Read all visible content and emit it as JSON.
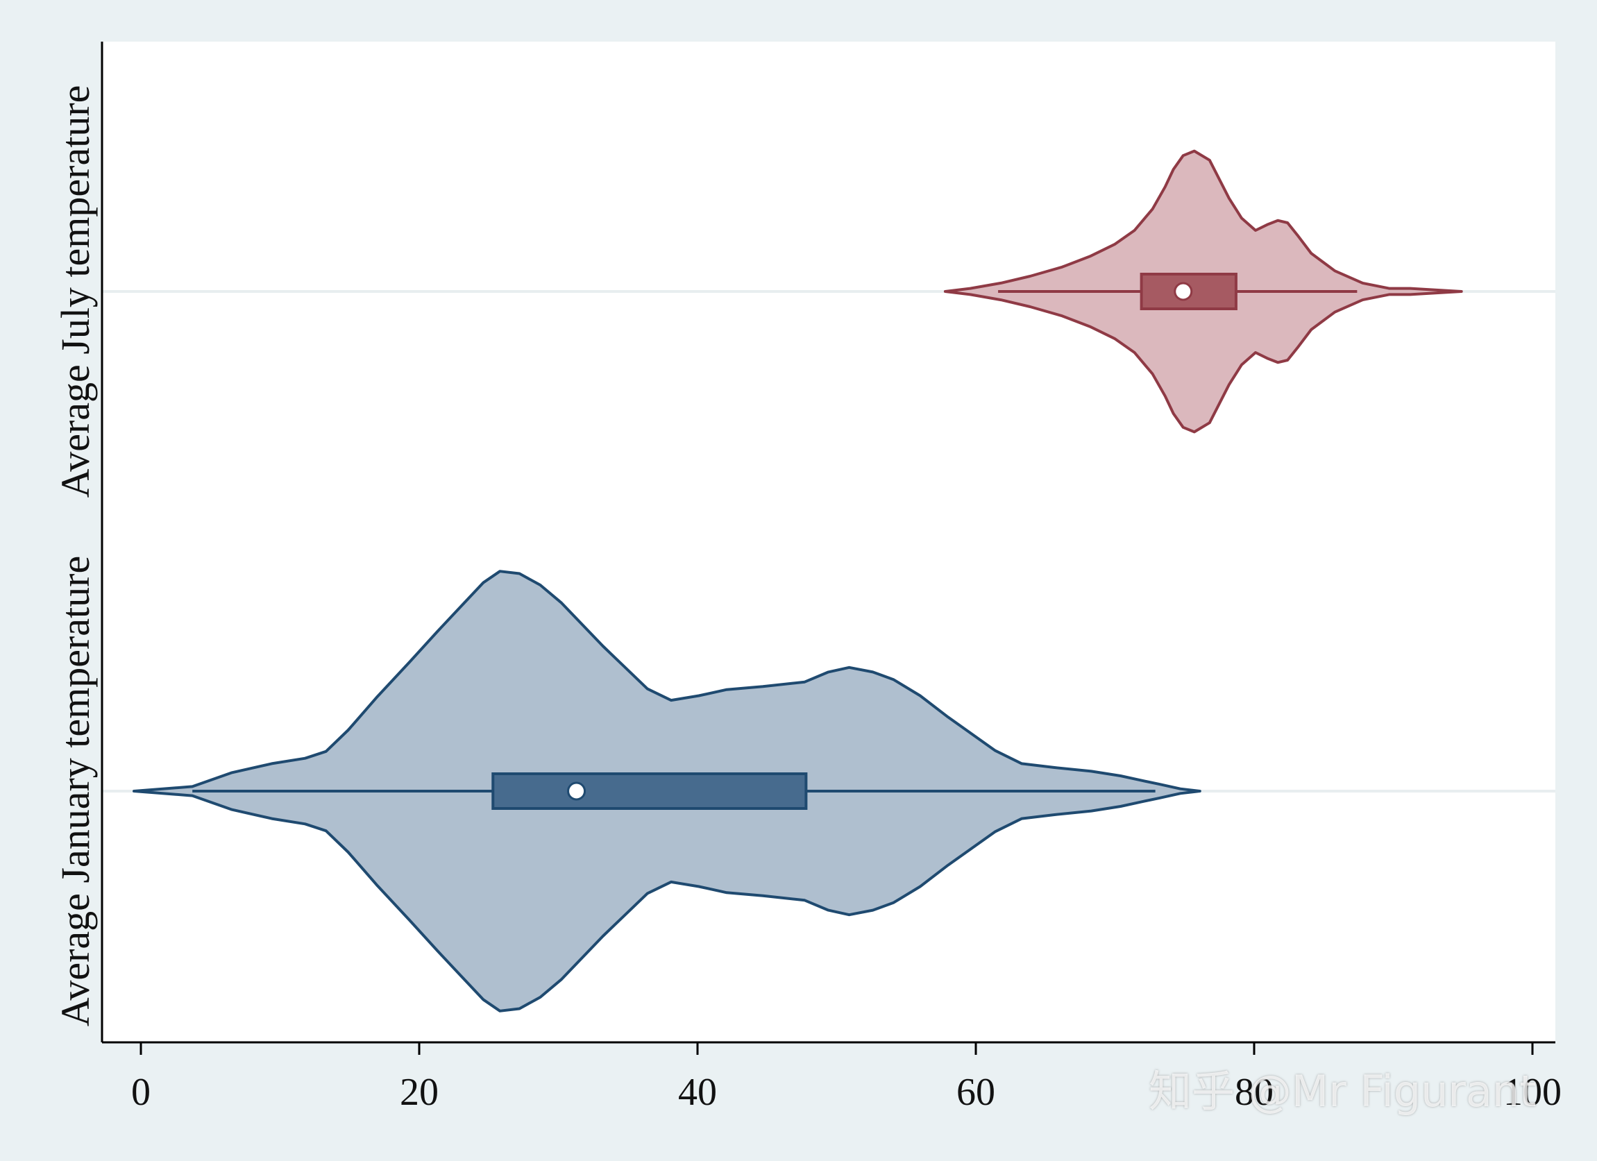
{
  "chart_data": {
    "type": "violin",
    "orientation": "horizontal",
    "xlim": [
      -2,
      101
    ],
    "x_ticks": [
      0,
      20,
      40,
      60,
      80,
      100
    ],
    "x_tick_labels": [
      "0",
      "20",
      "40",
      "60",
      "80",
      "100"
    ],
    "grid": "horizontal reference line at each category",
    "series": [
      {
        "name": "Average July temperature",
        "color_fill": "#dbb8bd",
        "color_line": "#8f3a45",
        "color_box": "#a65a62",
        "whiskers": [
          61.6,
          87.4
        ],
        "box": [
          71.9,
          78.7
        ],
        "median": 74.9,
        "density_x": [
          57.8,
          59.6,
          61.8,
          63.9,
          66.2,
          68.2,
          70.0,
          71.4,
          72.7,
          73.6,
          74.2,
          74.9,
          75.7,
          76.8,
          78.2,
          79.1,
          80.1,
          81.0,
          81.7,
          82.4,
          83.1,
          84.1,
          85.8,
          87.8,
          89.7,
          91.2,
          94.9
        ],
        "density_w": [
          0.0,
          0.04,
          0.11,
          0.2,
          0.32,
          0.46,
          0.62,
          0.8,
          1.08,
          1.37,
          1.6,
          1.78,
          1.84,
          1.72,
          1.22,
          0.96,
          0.8,
          0.88,
          0.93,
          0.9,
          0.74,
          0.5,
          0.27,
          0.11,
          0.04,
          0.04,
          0.0
        ]
      },
      {
        "name": "Average January temperature",
        "color_fill": "#afbfcf",
        "color_line": "#1f4a70",
        "color_box": "#476b8e",
        "whiskers": [
          3.7,
          72.9
        ],
        "box": [
          25.3,
          47.8
        ],
        "median": 31.3,
        "density_x": [
          -0.5,
          3.7,
          6.5,
          9.4,
          11.8,
          13.3,
          14.9,
          17.0,
          19.3,
          21.3,
          23.1,
          24.6,
          25.8,
          27.2,
          28.7,
          30.2,
          33.2,
          36.4,
          38.1,
          40.1,
          42.1,
          44.7,
          47.7,
          49.4,
          50.9,
          52.6,
          54.1,
          56.0,
          58.0,
          59.7,
          61.4,
          63.3,
          65.6,
          68.3,
          70.4,
          71.9,
          73.2,
          74.7,
          76.1
        ],
        "density_w": [
          0.0,
          0.06,
          0.24,
          0.36,
          0.43,
          0.52,
          0.8,
          1.24,
          1.69,
          2.09,
          2.44,
          2.73,
          2.88,
          2.85,
          2.7,
          2.47,
          1.9,
          1.34,
          1.19,
          1.25,
          1.33,
          1.37,
          1.43,
          1.56,
          1.62,
          1.56,
          1.46,
          1.25,
          0.97,
          0.75,
          0.53,
          0.36,
          0.31,
          0.26,
          0.2,
          0.14,
          0.09,
          0.03,
          0.0
        ]
      }
    ],
    "ylabels": [
      "Average July temperature",
      "Average January temperature"
    ]
  },
  "watermark": "知乎 @Mr Figurant"
}
